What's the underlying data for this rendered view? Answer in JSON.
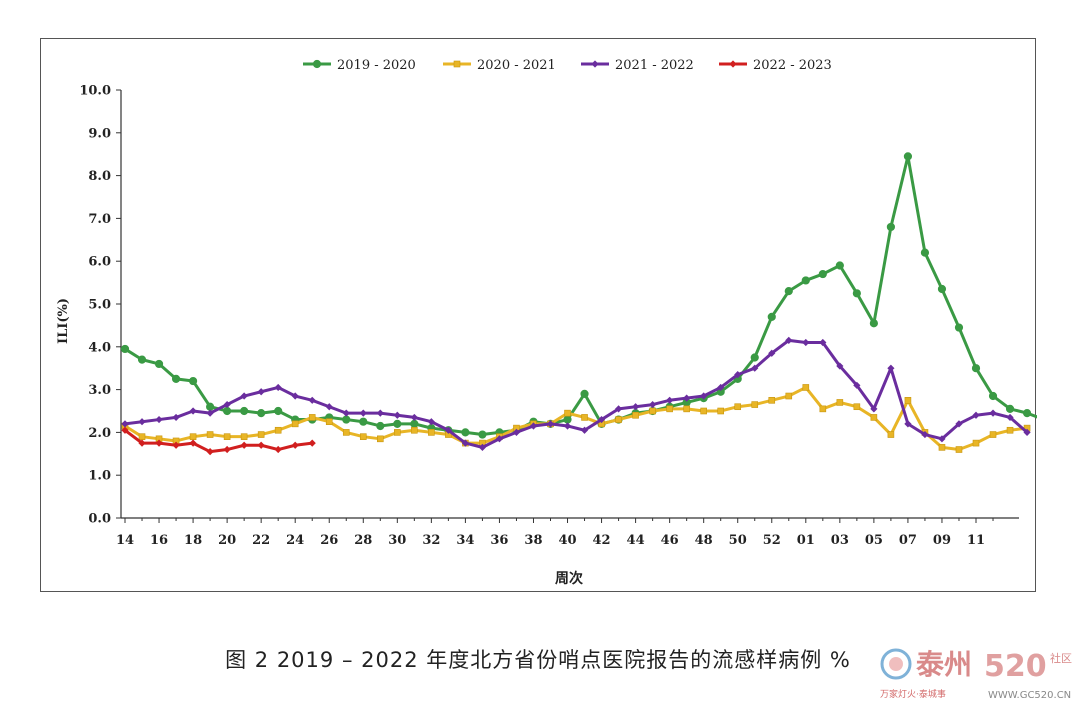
{
  "chart_data": {
    "type": "line",
    "title": "",
    "xlabel": "周次",
    "ylabel": "ILI(%)",
    "ylim": [
      0,
      10
    ],
    "yticks": [
      "0.0",
      "1.0",
      "2.0",
      "3.0",
      "4.0",
      "5.0",
      "6.0",
      "7.0",
      "8.0",
      "9.0",
      "10.0"
    ],
    "x_tick_labels": [
      "14",
      "16",
      "18",
      "20",
      "22",
      "24",
      "26",
      "28",
      "30",
      "32",
      "34",
      "36",
      "38",
      "40",
      "42",
      "44",
      "46",
      "48",
      "50",
      "52",
      "01",
      "03",
      "05",
      "07",
      "09",
      "11"
    ],
    "legend_position": "top-center",
    "grid": false,
    "series": [
      {
        "name": "2019 - 2020",
        "color": "#3a9a44",
        "marker": "circle",
        "values": [
          3.95,
          3.7,
          3.6,
          3.25,
          3.2,
          2.6,
          2.5,
          2.5,
          2.45,
          2.5,
          2.3,
          2.3,
          2.35,
          2.3,
          2.25,
          2.15,
          2.2,
          2.2,
          2.1,
          2.05,
          2.0,
          1.95,
          2.0,
          2.05,
          2.25,
          2.2,
          2.3,
          2.9,
          2.2,
          2.3,
          2.45,
          2.5,
          2.6,
          2.7,
          2.8,
          2.95,
          3.25,
          3.75,
          4.7,
          5.3,
          5.55,
          5.7,
          5.9,
          5.25,
          4.55,
          6.8,
          8.45,
          6.2,
          5.35,
          4.45,
          3.5,
          2.85,
          2.55,
          2.45,
          2.3
        ]
      },
      {
        "name": "2020 - 2021",
        "color": "#e8b526",
        "marker": "square",
        "values": [
          2.15,
          1.9,
          1.85,
          1.8,
          1.9,
          1.95,
          1.9,
          1.9,
          1.95,
          2.05,
          2.2,
          2.35,
          2.25,
          2.0,
          1.9,
          1.85,
          2.0,
          2.05,
          2.0,
          1.95,
          1.75,
          1.75,
          1.9,
          2.1,
          2.2,
          2.2,
          2.45,
          2.35,
          2.2,
          2.3,
          2.4,
          2.5,
          2.55,
          2.55,
          2.5,
          2.5,
          2.6,
          2.65,
          2.75,
          2.85,
          3.05,
          2.55,
          2.7,
          2.6,
          2.35,
          1.95,
          2.75,
          2.0,
          1.65,
          1.6,
          1.75,
          1.95,
          2.05,
          2.1
        ]
      },
      {
        "name": "2021 - 2022",
        "color": "#6a2d9e",
        "marker": "diamond",
        "values": [
          2.2,
          2.25,
          2.3,
          2.35,
          2.5,
          2.45,
          2.65,
          2.85,
          2.95,
          3.05,
          2.85,
          2.75,
          2.6,
          2.45,
          2.45,
          2.45,
          2.4,
          2.35,
          2.25,
          2.05,
          1.75,
          1.65,
          1.85,
          2.0,
          2.15,
          2.2,
          2.15,
          2.05,
          2.3,
          2.55,
          2.6,
          2.65,
          2.75,
          2.8,
          2.85,
          3.05,
          3.35,
          3.5,
          3.85,
          4.15,
          4.1,
          4.1,
          3.55,
          3.1,
          2.55,
          3.5,
          2.2,
          1.95,
          1.85,
          2.2,
          2.4,
          2.45,
          2.35,
          2.0
        ]
      },
      {
        "name": "2022 - 2023",
        "color": "#d11f1f",
        "marker": "diamond",
        "values": [
          2.05,
          1.75,
          1.75,
          1.7,
          1.75,
          1.55,
          1.6,
          1.7,
          1.7,
          1.6,
          1.7,
          1.75
        ]
      }
    ]
  },
  "caption": "图 2  2019 – 2022 年度北方省份哨点医院报告的流感样病例 %",
  "watermark": {
    "main": "泰州",
    "number": "520",
    "side": "社区",
    "sub": "万家灯火·泰城事",
    "url": "WWW.GC520.CN"
  }
}
